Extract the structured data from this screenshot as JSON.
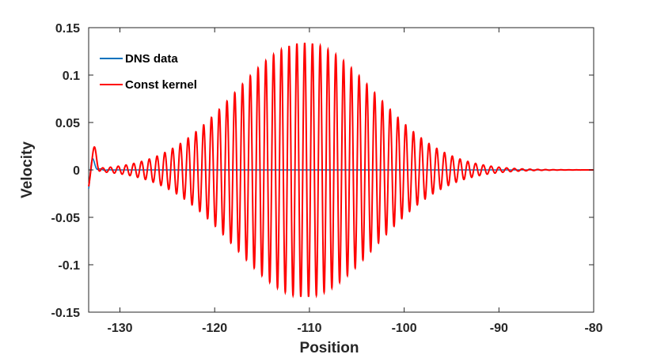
{
  "chart_data": {
    "type": "line",
    "title": "",
    "xlabel": "Position",
    "ylabel": "Velocity",
    "xlim": [
      -133.3,
      -80
    ],
    "ylim": [
      -0.15,
      0.15
    ],
    "xticks": [
      -130,
      -120,
      -110,
      -100,
      -90,
      -80
    ],
    "yticks": [
      -0.15,
      -0.1,
      -0.05,
      0,
      0.05,
      0.1,
      0.15
    ],
    "xtick_labels": [
      "-130",
      "-120",
      "-110",
      "-100",
      "-90",
      "-80"
    ],
    "ytick_labels": [
      "-0.15",
      "-0.1",
      "-0.05",
      "0",
      "0.05",
      "0.1",
      "0.15"
    ],
    "grid": false,
    "legend_position": "top-left",
    "series": [
      {
        "name": "DNS data",
        "color": "#0072BD",
        "description_values": {
          "x_start": -133.3,
          "x_end": -80,
          "initial_value": -0.02,
          "settled_value": 0,
          "transient_peak": 0.01,
          "transient_end_x": -131
        }
      },
      {
        "name": "Const kernel",
        "color": "#FF0000",
        "description_values": {
          "x_start": -133.3,
          "x_end": -80,
          "envelope_center_x": -110.5,
          "envelope_peak_amplitude": 0.134,
          "envelope_width_sigma": 7.4,
          "oscillation_period": 0.82
        }
      }
    ]
  },
  "axes": {
    "box_color": "#262626"
  }
}
